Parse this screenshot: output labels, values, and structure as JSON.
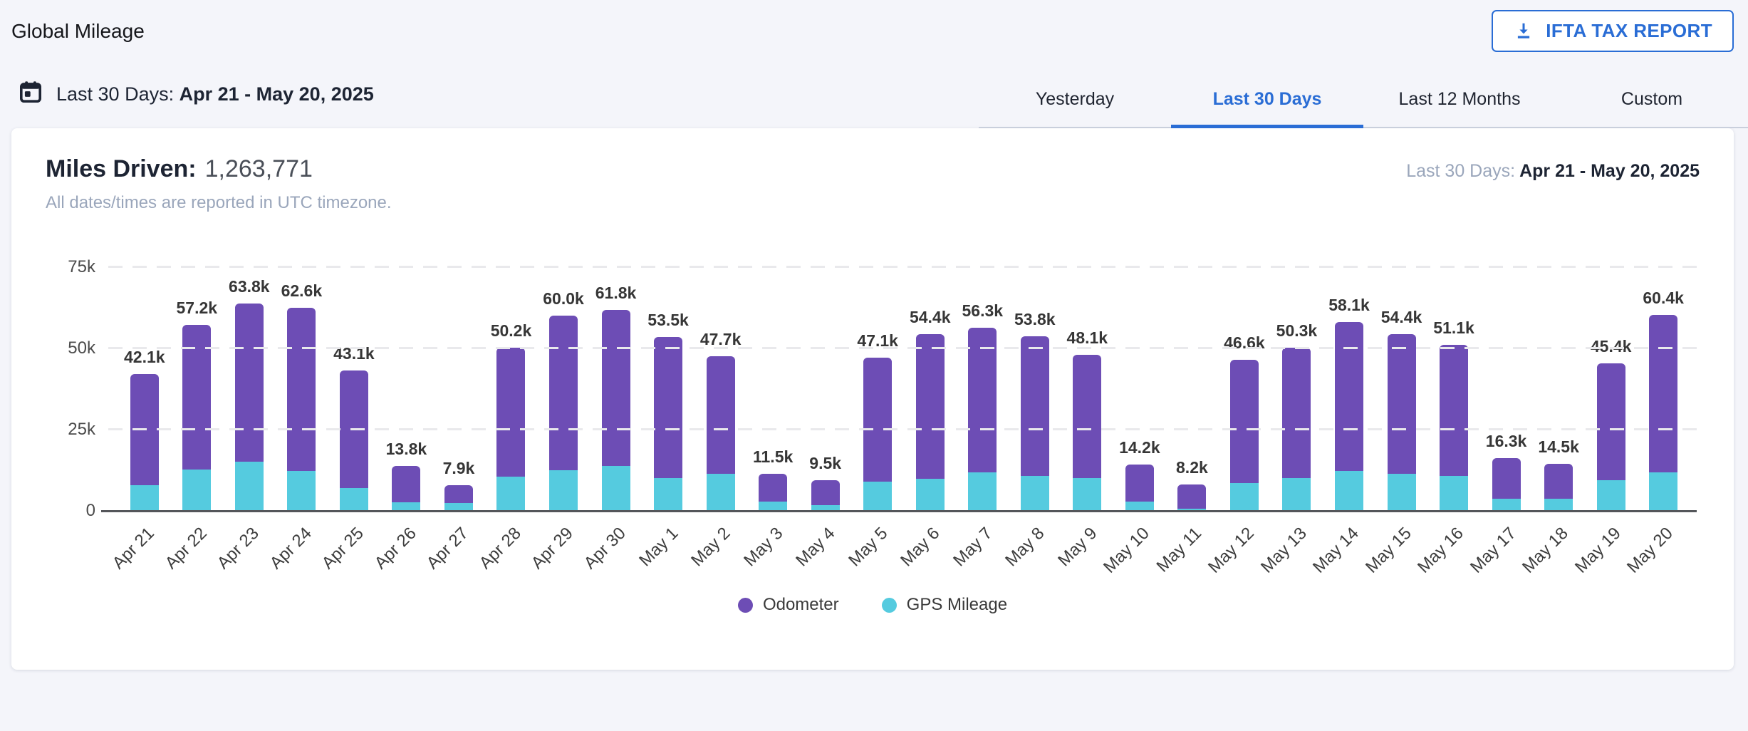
{
  "page": {
    "title": "Global Mileage"
  },
  "header": {
    "ifta_button_label": "IFTA TAX REPORT"
  },
  "date_bar": {
    "range_label": "Last 30 Days:",
    "range_value": "Apr 21 - May 20, 2025"
  },
  "tabs": [
    {
      "label": "Yesterday",
      "active": false
    },
    {
      "label": "Last 30 Days",
      "active": true
    },
    {
      "label": "Last 12 Months",
      "active": false
    },
    {
      "label": "Custom",
      "active": false
    }
  ],
  "card": {
    "metric_label": "Miles Driven:",
    "metric_value": "1,263,771",
    "subtitle": "All dates/times are reported in UTC timezone.",
    "range_label": "Last 30 Days:",
    "range_value": "Apr 21 - May 20, 2025"
  },
  "colors": {
    "accent_blue": "#2a6dd5",
    "odometer_purple": "#6d4db5",
    "gps_teal": "#55cbdf",
    "page_background": "#f4f5fa"
  },
  "chart_data": {
    "type": "bar",
    "stacked": true,
    "title": "Miles Driven: 1,263,771",
    "xlabel": "",
    "ylabel": "",
    "ylim_k": [
      0,
      75
    ],
    "y_ticks": [
      "0",
      "25k",
      "50k",
      "75k"
    ],
    "grid": "dashed horizontal at 25k/50k/75k",
    "legend_position": "bottom",
    "categories": [
      "Apr 21",
      "Apr 22",
      "Apr 23",
      "Apr 24",
      "Apr 25",
      "Apr 26",
      "Apr 27",
      "Apr 28",
      "Apr 29",
      "Apr 30",
      "May 1",
      "May 2",
      "May 3",
      "May 4",
      "May 5",
      "May 6",
      "May 7",
      "May 8",
      "May 9",
      "May 10",
      "May 11",
      "May 12",
      "May 13",
      "May 14",
      "May 15",
      "May 16",
      "May 17",
      "May 18",
      "May 19",
      "May 20"
    ],
    "totals_k": [
      42.1,
      57.2,
      63.8,
      62.6,
      43.1,
      13.8,
      7.9,
      50.2,
      60.0,
      61.8,
      53.5,
      47.7,
      11.5,
      9.5,
      47.1,
      54.4,
      56.3,
      53.8,
      48.1,
      14.2,
      8.2,
      46.6,
      50.3,
      58.1,
      54.4,
      51.1,
      16.3,
      14.5,
      45.4,
      60.4
    ],
    "total_labels": [
      "42.1k",
      "57.2k",
      "63.8k",
      "62.6k",
      "43.1k",
      "13.8k",
      "7.9k",
      "50.2k",
      "60.0k",
      "61.8k",
      "53.5k",
      "47.7k",
      "11.5k",
      "9.5k",
      "47.1k",
      "54.4k",
      "56.3k",
      "53.8k",
      "48.1k",
      "14.2k",
      "8.2k",
      "46.6k",
      "50.3k",
      "58.1k",
      "54.4k",
      "51.1k",
      "16.3k",
      "14.5k",
      "45.4k",
      "60.4k"
    ],
    "series": [
      {
        "name": "GPS Mileage",
        "color": "#55cbdf",
        "estimated_from_pixels": true,
        "values_k": [
          8.0,
          12.8,
          15.2,
          12.3,
          7.0,
          2.7,
          2.5,
          10.6,
          12.6,
          13.9,
          10.2,
          11.4,
          2.8,
          1.7,
          9.0,
          9.9,
          11.9,
          10.7,
          10.2,
          2.8,
          0.6,
          8.6,
          10.2,
          12.3,
          11.4,
          10.7,
          3.7,
          3.7,
          9.5,
          11.9
        ]
      },
      {
        "name": "Odometer",
        "color": "#6d4db5",
        "estimated_from_pixels": true,
        "values_k": [
          34.1,
          44.4,
          48.6,
          50.3,
          36.1,
          11.1,
          5.4,
          39.6,
          47.4,
          47.9,
          43.3,
          36.3,
          8.7,
          7.8,
          38.1,
          44.5,
          44.4,
          43.1,
          37.9,
          11.4,
          7.6,
          38.0,
          40.1,
          45.8,
          43.0,
          40.4,
          12.6,
          10.8,
          35.9,
          48.5
        ]
      }
    ],
    "legend": [
      "Odometer",
      "GPS Mileage"
    ]
  }
}
